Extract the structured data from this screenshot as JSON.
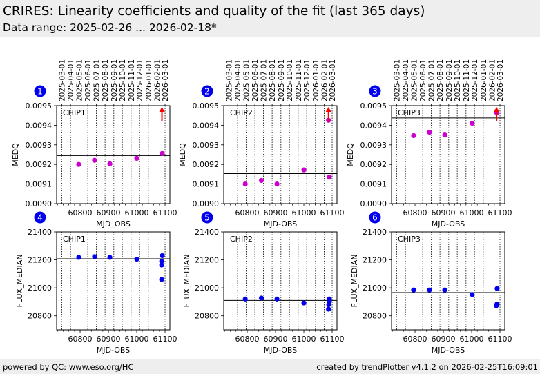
{
  "header": {
    "title": "CRIRES: Linearity coefficients and quality of the fit (last 365 days)",
    "subtitle": "Data range: 2025-02-26 ... 2026-02-18*"
  },
  "footer": {
    "left": "powered by QC: www.eso.org/HC",
    "right": "created by trendPlotter v4.1.2 on 2026-02-25T16:09:01"
  },
  "colors": {
    "medq_points": "#cc00cc",
    "flux_points": "#0000ee",
    "outlier_arrow": "#ff0000",
    "badge": "#0000ee",
    "header_bg": "#eeeeee"
  },
  "chart_data": [
    {
      "id": 1,
      "badge": "1",
      "type": "scatter",
      "label": "CHIP1",
      "xlabel": "MJD_OBS",
      "ylabel": "MEDQ",
      "xlim": [
        60717,
        61117
      ],
      "ylim": [
        0.009,
        0.0095
      ],
      "xticks": [
        60800,
        60900,
        61000,
        61100
      ],
      "xtick_labels": [
        "60800",
        "60900",
        "61000",
        "61100"
      ],
      "yticks": [
        0.009,
        0.0091,
        0.0092,
        0.0093,
        0.0094,
        0.0095
      ],
      "ytick_labels": [
        "0.0090",
        "0.0091",
        "0.0092",
        "0.0093",
        "0.0094",
        "0.0095"
      ],
      "date_ticks": [
        "2025-03-01",
        "2025-04-01",
        "2025-05-01",
        "2025-06-01",
        "2025-07-01",
        "2025-08-01",
        "2025-09-01",
        "2025-10-01",
        "2025-11-01",
        "2025-12-01",
        "2026-01-01",
        "2026-02-01",
        "2026-03-01"
      ],
      "date_tick_mjd": [
        60735,
        60766,
        60796,
        60827,
        60857,
        60888,
        60919,
        60949,
        60980,
        61010,
        61041,
        61072,
        61100
      ],
      "reference_line": 0.009245,
      "points": [
        [
          60795,
          0.0092
        ],
        [
          60851,
          0.009221
        ],
        [
          60905,
          0.009203
        ],
        [
          61000,
          0.009231
        ],
        [
          61090,
          0.009256
        ]
      ],
      "outliers_above": [
        61089
      ]
    },
    {
      "id": 2,
      "badge": "2",
      "type": "scatter",
      "label": "CHIP2",
      "xlabel": "MJD-OBS",
      "ylabel": "MEDQ",
      "xlim": [
        60717,
        61117
      ],
      "ylim": [
        0.009,
        0.0095
      ],
      "xticks": [
        60800,
        60900,
        61000,
        61100
      ],
      "xtick_labels": [
        "60800",
        "60900",
        "61000",
        "61100"
      ],
      "yticks": [
        0.009,
        0.0091,
        0.0092,
        0.0093,
        0.0094,
        0.0095
      ],
      "ytick_labels": [
        "0.0090",
        "0.0091",
        "0.0092",
        "0.0093",
        "0.0094",
        "0.0095"
      ],
      "date_ticks": [
        "2025-03-01",
        "2025-04-01",
        "2025-05-01",
        "2025-06-01",
        "2025-07-01",
        "2025-08-01",
        "2025-09-01",
        "2025-10-01",
        "2025-11-01",
        "2025-12-01",
        "2026-01-01",
        "2026-02-01",
        "2026-03-01"
      ],
      "date_tick_mjd": [
        60735,
        60766,
        60796,
        60827,
        60857,
        60888,
        60919,
        60949,
        60980,
        61010,
        61041,
        61072,
        61100
      ],
      "reference_line": 0.009153,
      "points": [
        [
          60793,
          0.0091
        ],
        [
          60850,
          0.009118
        ],
        [
          60905,
          0.0091
        ],
        [
          61000,
          0.009172
        ],
        [
          61090,
          0.009135
        ],
        [
          61087,
          0.009425
        ]
      ],
      "outliers_above": [
        61087
      ]
    },
    {
      "id": 3,
      "badge": "3",
      "type": "scatter",
      "label": "CHIP3",
      "xlabel": "MJD-OBS",
      "ylabel": "MEDQ",
      "xlim": [
        60717,
        61117
      ],
      "ylim": [
        0.009,
        0.0095
      ],
      "xticks": [
        60800,
        60900,
        61000,
        61100
      ],
      "xtick_labels": [
        "60800",
        "60900",
        "61000",
        "61100"
      ],
      "yticks": [
        0.009,
        0.0091,
        0.0092,
        0.0093,
        0.0094,
        0.0095
      ],
      "ytick_labels": [
        "0.0090",
        "0.0091",
        "0.0092",
        "0.0093",
        "0.0094",
        "0.0095"
      ],
      "date_ticks": [
        "2025-03-01",
        "2025-04-01",
        "2025-05-01",
        "2025-06-01",
        "2025-07-01",
        "2025-08-01",
        "2025-09-01",
        "2025-10-01",
        "2025-11-01",
        "2025-12-01",
        "2026-01-01",
        "2026-02-01",
        "2026-03-01"
      ],
      "date_tick_mjd": [
        60735,
        60766,
        60796,
        60827,
        60857,
        60888,
        60919,
        60949,
        60980,
        61010,
        61041,
        61072,
        61100
      ],
      "reference_line": 0.009437,
      "points": [
        [
          60795,
          0.009347
        ],
        [
          60851,
          0.009364
        ],
        [
          60905,
          0.00935
        ],
        [
          61002,
          0.00941
        ],
        [
          61089,
          0.009463
        ]
      ],
      "outliers_above": [
        61088
      ]
    },
    {
      "id": 4,
      "badge": "4",
      "type": "scatter",
      "label": "CHIP1",
      "xlabel": "MJD-OBS",
      "ylabel": "FLUX_MEDIAN",
      "xlim": [
        60717,
        61117
      ],
      "ylim": [
        20700,
        21400
      ],
      "xticks": [
        60800,
        60900,
        61000,
        61100
      ],
      "xtick_labels": [
        "60800",
        "60900",
        "61000",
        "61100"
      ],
      "yticks": [
        20800,
        21000,
        21200,
        21400
      ],
      "ytick_labels": [
        "20800",
        "21000",
        "21200",
        "21400"
      ],
      "date_tick_mjd": [
        60735,
        60766,
        60796,
        60827,
        60857,
        60888,
        60919,
        60949,
        60980,
        61010,
        61041,
        61072,
        61100
      ],
      "reference_line": 21208,
      "points": [
        [
          60795,
          21218
        ],
        [
          60851,
          21223
        ],
        [
          60905,
          21218
        ],
        [
          61000,
          21205
        ],
        [
          61090,
          21230
        ],
        [
          61088,
          21190
        ],
        [
          61088,
          21163
        ],
        [
          61088,
          21060
        ]
      ]
    },
    {
      "id": 5,
      "badge": "5",
      "type": "scatter",
      "label": "CHIP2",
      "xlabel": "MJD-OBS",
      "ylabel": "FLUX_MEDIAN",
      "xlim": [
        60717,
        61117
      ],
      "ylim": [
        20700,
        21400
      ],
      "xticks": [
        60800,
        60900,
        61000,
        61100
      ],
      "xtick_labels": [
        "60800",
        "60900",
        "61000",
        "61100"
      ],
      "yticks": [
        20800,
        21000,
        21200,
        21400
      ],
      "ytick_labels": [
        "20800",
        "21000",
        "21200",
        "21400"
      ],
      "date_tick_mjd": [
        60735,
        60766,
        60796,
        60827,
        60857,
        60888,
        60919,
        60949,
        60980,
        61010,
        61041,
        61072,
        61100
      ],
      "reference_line": 20910,
      "points": [
        [
          60793,
          20920
        ],
        [
          60850,
          20927
        ],
        [
          60905,
          20920
        ],
        [
          61000,
          20892
        ],
        [
          61090,
          20921
        ],
        [
          61090,
          20905
        ],
        [
          61088,
          20880
        ],
        [
          61087,
          20848
        ]
      ]
    },
    {
      "id": 6,
      "badge": "6",
      "type": "scatter",
      "label": "CHIP3",
      "xlabel": "MJD-OBS",
      "ylabel": "FLUX_MEDIAN",
      "xlim": [
        60717,
        61117
      ],
      "ylim": [
        20700,
        21400
      ],
      "xticks": [
        60800,
        60900,
        61000,
        61100
      ],
      "xtick_labels": [
        "60800",
        "60900",
        "61000",
        "61100"
      ],
      "yticks": [
        20800,
        21000,
        21200,
        21400
      ],
      "ytick_labels": [
        "20800",
        "21000",
        "21200",
        "21400"
      ],
      "date_tick_mjd": [
        60735,
        60766,
        60796,
        60827,
        60857,
        60888,
        60919,
        60949,
        60980,
        61010,
        61041,
        61072,
        61100
      ],
      "reference_line": 20966,
      "points": [
        [
          60795,
          20985
        ],
        [
          60851,
          20985
        ],
        [
          60905,
          20985
        ],
        [
          61002,
          20952
        ],
        [
          61090,
          20995
        ],
        [
          61090,
          20885
        ],
        [
          61088,
          20878
        ],
        [
          61087,
          20873
        ]
      ]
    }
  ]
}
